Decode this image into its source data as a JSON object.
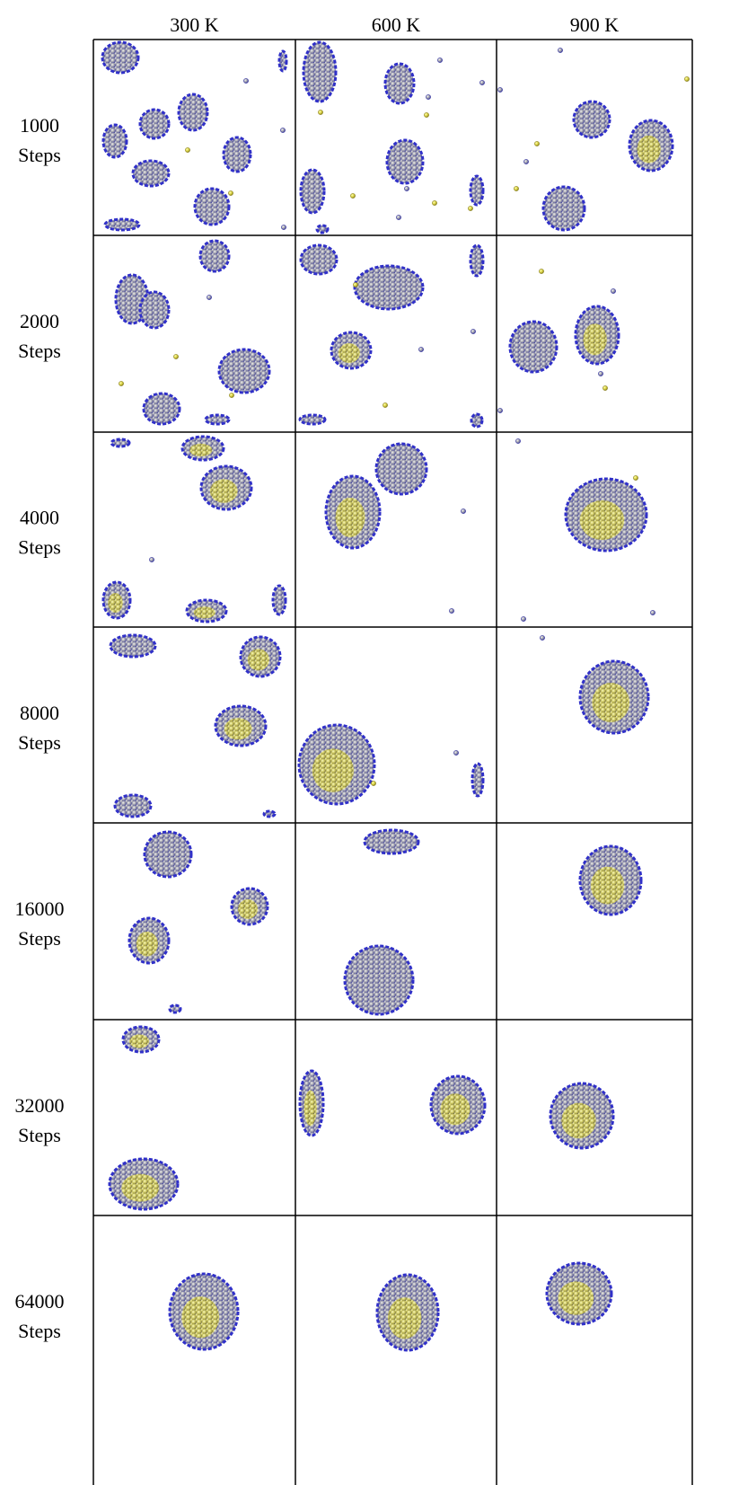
{
  "header": {
    "columns": [
      "300 K",
      "600 K",
      "900 K"
    ]
  },
  "rows": [
    {
      "steps": "1000",
      "unit": "Steps"
    },
    {
      "steps": "2000",
      "unit": "Steps"
    },
    {
      "steps": "4000",
      "unit": "Steps"
    },
    {
      "steps": "8000",
      "unit": "Steps"
    },
    {
      "steps": "16000",
      "unit": "Steps"
    },
    {
      "steps": "32000",
      "unit": "Steps"
    },
    {
      "steps": "64000",
      "unit": "Steps"
    }
  ]
}
